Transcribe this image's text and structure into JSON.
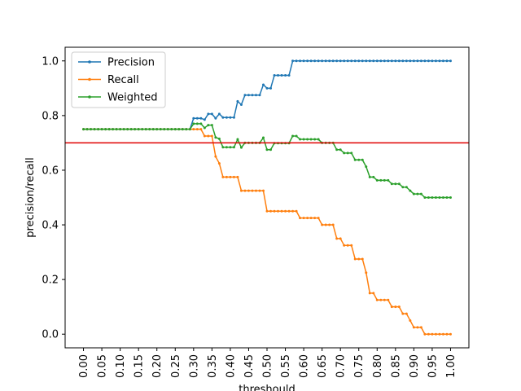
{
  "chart_data": {
    "type": "line",
    "title": "",
    "xlabel": "threshould",
    "ylabel": "precision/recall",
    "xlim": [
      -0.05,
      1.05
    ],
    "ylim": [
      -0.05,
      1.05
    ],
    "xticks": [
      "0.00",
      "0.05",
      "0.10",
      "0.15",
      "0.20",
      "0.25",
      "0.30",
      "0.35",
      "0.40",
      "0.45",
      "0.50",
      "0.55",
      "0.60",
      "0.65",
      "0.70",
      "0.75",
      "0.80",
      "0.85",
      "0.90",
      "0.95",
      "1.00"
    ],
    "yticks": [
      "0.0",
      "0.2",
      "0.4",
      "0.6",
      "0.8",
      "1.0"
    ],
    "grid": false,
    "legend_position": "top-left",
    "reference_line": {
      "y": 0.7,
      "color": "#e00000"
    },
    "x_start": 0.0,
    "x_step": 0.01,
    "series": [
      {
        "name": "Precision",
        "color": "#1f77b4",
        "values": [
          0.75,
          0.75,
          0.75,
          0.75,
          0.75,
          0.75,
          0.75,
          0.75,
          0.75,
          0.75,
          0.75,
          0.75,
          0.75,
          0.75,
          0.75,
          0.75,
          0.75,
          0.75,
          0.75,
          0.75,
          0.75,
          0.75,
          0.75,
          0.75,
          0.75,
          0.75,
          0.75,
          0.75,
          0.75,
          0.75,
          0.79,
          0.79,
          0.79,
          0.785,
          0.806,
          0.806,
          0.79,
          0.806,
          0.793,
          0.793,
          0.793,
          0.793,
          0.852,
          0.84,
          0.875,
          0.875,
          0.875,
          0.875,
          0.875,
          0.913,
          0.9,
          0.9,
          0.947,
          0.947,
          0.947,
          0.947,
          0.947,
          1.0,
          1.0,
          1.0,
          1.0,
          1.0,
          1.0,
          1.0,
          1.0,
          1.0,
          1.0,
          1.0,
          1.0,
          1.0,
          1.0,
          1.0,
          1.0,
          1.0,
          1.0,
          1.0,
          1.0,
          1.0,
          1.0,
          1.0,
          1.0,
          1.0,
          1.0,
          1.0,
          1.0,
          1.0,
          1.0,
          1.0,
          1.0,
          1.0,
          1.0,
          1.0,
          1.0,
          1.0,
          1.0,
          1.0,
          1.0,
          1.0,
          1.0,
          1.0,
          1.0
        ]
      },
      {
        "name": "Recall",
        "color": "#ff7f0e",
        "values": [
          0.75,
          0.75,
          0.75,
          0.75,
          0.75,
          0.75,
          0.75,
          0.75,
          0.75,
          0.75,
          0.75,
          0.75,
          0.75,
          0.75,
          0.75,
          0.75,
          0.75,
          0.75,
          0.75,
          0.75,
          0.75,
          0.75,
          0.75,
          0.75,
          0.75,
          0.75,
          0.75,
          0.75,
          0.75,
          0.75,
          0.75,
          0.75,
          0.75,
          0.725,
          0.725,
          0.725,
          0.65,
          0.625,
          0.575,
          0.575,
          0.575,
          0.575,
          0.575,
          0.525,
          0.525,
          0.525,
          0.525,
          0.525,
          0.525,
          0.525,
          0.45,
          0.45,
          0.45,
          0.45,
          0.45,
          0.45,
          0.45,
          0.45,
          0.45,
          0.425,
          0.425,
          0.425,
          0.425,
          0.425,
          0.425,
          0.4,
          0.4,
          0.4,
          0.4,
          0.35,
          0.35,
          0.325,
          0.325,
          0.325,
          0.275,
          0.275,
          0.275,
          0.225,
          0.15,
          0.15,
          0.125,
          0.125,
          0.125,
          0.125,
          0.1,
          0.1,
          0.1,
          0.075,
          0.075,
          0.05,
          0.025,
          0.025,
          0.025,
          0.0,
          0.0,
          0.0,
          0.0,
          0.0,
          0.0,
          0.0,
          0.0
        ]
      },
      {
        "name": "Weighted",
        "color": "#2ca02c",
        "values": [
          0.75,
          0.75,
          0.75,
          0.75,
          0.75,
          0.75,
          0.75,
          0.75,
          0.75,
          0.75,
          0.75,
          0.75,
          0.75,
          0.75,
          0.75,
          0.75,
          0.75,
          0.75,
          0.75,
          0.75,
          0.75,
          0.75,
          0.75,
          0.75,
          0.75,
          0.75,
          0.75,
          0.75,
          0.75,
          0.75,
          0.77,
          0.77,
          0.77,
          0.755,
          0.765,
          0.765,
          0.72,
          0.715,
          0.684,
          0.684,
          0.684,
          0.684,
          0.713,
          0.683,
          0.7,
          0.7,
          0.7,
          0.7,
          0.7,
          0.719,
          0.675,
          0.675,
          0.699,
          0.699,
          0.699,
          0.699,
          0.699,
          0.725,
          0.725,
          0.713,
          0.713,
          0.713,
          0.713,
          0.713,
          0.713,
          0.7,
          0.7,
          0.7,
          0.7,
          0.675,
          0.675,
          0.663,
          0.663,
          0.663,
          0.638,
          0.638,
          0.638,
          0.613,
          0.575,
          0.575,
          0.563,
          0.563,
          0.563,
          0.563,
          0.55,
          0.55,
          0.55,
          0.538,
          0.538,
          0.525,
          0.513,
          0.513,
          0.513,
          0.5,
          0.5,
          0.5,
          0.5,
          0.5,
          0.5,
          0.5,
          0.5
        ]
      }
    ]
  }
}
